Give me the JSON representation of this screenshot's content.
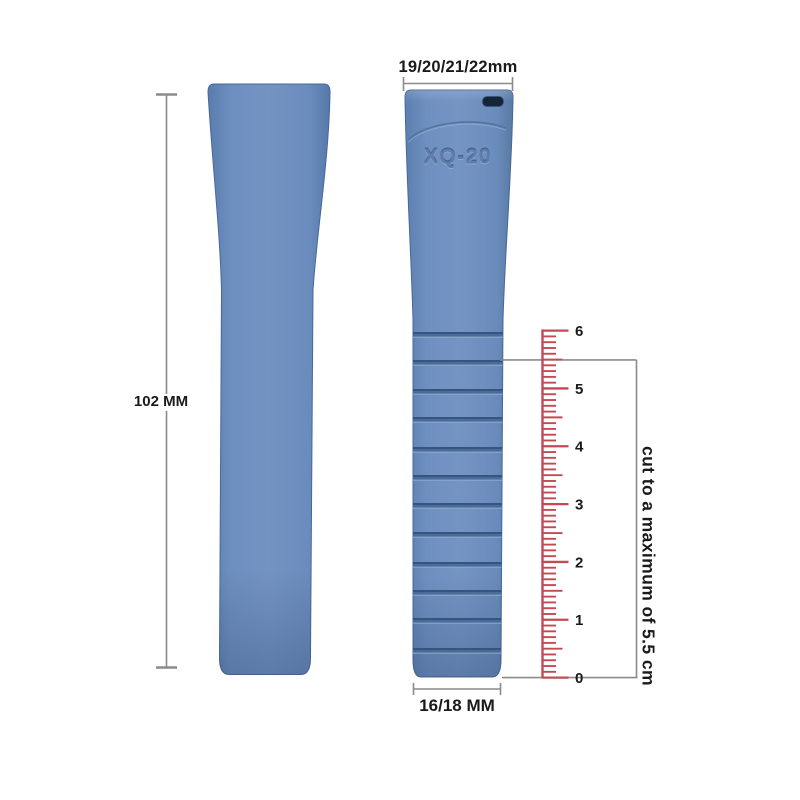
{
  "labels": {
    "length": "102 MM",
    "lug_widths": "19/20/21/22mm",
    "tail_width": "16/18 MM",
    "cut_note": "cut to a maximum of 5.5 cm",
    "engraving": "XQ-20"
  },
  "ruler": {
    "tick_labels": [
      "0",
      "1",
      "2",
      "3",
      "4",
      "5",
      "6"
    ]
  },
  "colors": {
    "strap_blue": "#6c8ebe",
    "strap_edge": "#47689b",
    "groove_dark": "#35547f",
    "slot_dark": "#152538",
    "ruler_red": "#c34a55",
    "guide_gray": "#8b8b8b",
    "text_black": "#1a1a1a"
  }
}
